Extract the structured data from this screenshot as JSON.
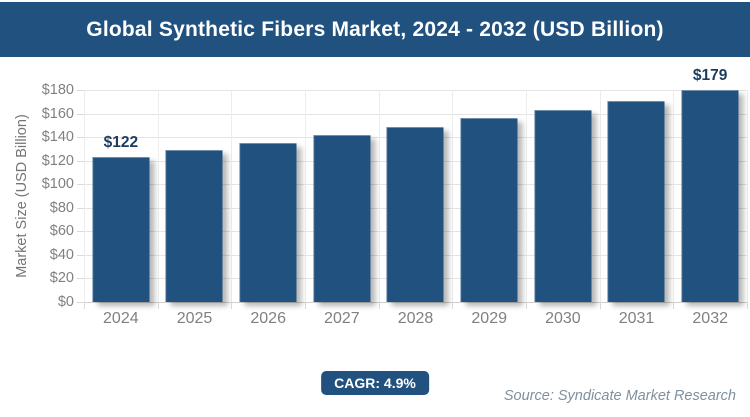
{
  "header": {
    "title": "Global Synthetic Fibers Market, 2024 - 2032 (USD Billion)"
  },
  "chart_data": {
    "type": "bar",
    "title": "Global Synthetic Fibers Market, 2024 - 2032 (USD Billion)",
    "categories": [
      "2024",
      "2025",
      "2026",
      "2027",
      "2028",
      "2029",
      "2030",
      "2031",
      "2032"
    ],
    "values": [
      122,
      128,
      134,
      141,
      148,
      155,
      162,
      170,
      179
    ],
    "xlabel": "",
    "ylabel": "Market Size (USD Billion)",
    "ylim": [
      0,
      180
    ],
    "ytick_step": 20,
    "ytick_prefix": "$",
    "grid": true,
    "legend": false,
    "annotations": [
      {
        "index": 0,
        "label": "$122"
      },
      {
        "index": 8,
        "label": "$179"
      }
    ],
    "bar_color": "#21517E"
  },
  "footer": {
    "cagr_label": "CAGR: 4.9%",
    "source": "Source: Syndicate Market Research"
  },
  "colors": {
    "header_bg": "#21517E",
    "bar_fill": "#21517E",
    "value_label": "#1B3C5F",
    "tick_label": "#808080",
    "grid_line": "#e4e4e4",
    "cagr_bg": "#21517E",
    "source_text": "#7E909E"
  }
}
